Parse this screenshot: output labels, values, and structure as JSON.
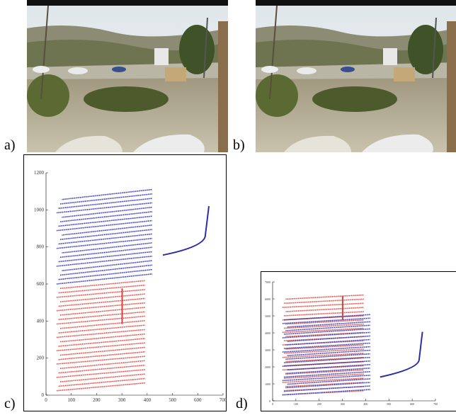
{
  "panels": {
    "a": "a)",
    "b": "b)",
    "c": "c)",
    "d": "d)"
  },
  "plot_c": {
    "xticks": [
      0,
      100,
      200,
      300,
      400,
      500,
      600,
      700
    ],
    "yticks": [
      0,
      200,
      400,
      600,
      800,
      1000,
      1200
    ]
  },
  "plot_d": {
    "xticks": [
      0,
      100,
      200,
      300,
      400,
      500,
      600,
      700
    ],
    "yticks": [
      0,
      1000,
      2000,
      3000,
      4000,
      5000,
      6000,
      7000
    ]
  }
}
